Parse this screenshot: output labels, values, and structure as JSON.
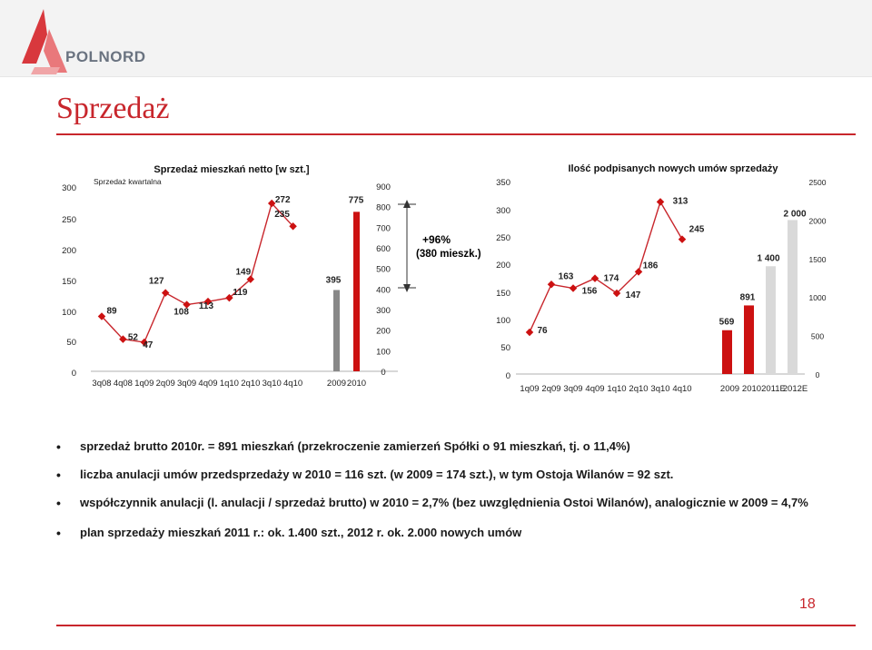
{
  "header": {
    "logo_text": "POLNORD",
    "title": "Sprzedaż"
  },
  "colors": {
    "accent_red": "#c8262c",
    "line_red": "#c8262c",
    "bar_red": "#cc1111",
    "bar_gray": "#888888",
    "bar_light": "#d9d9d9"
  },
  "annotation": {
    "growth_pct": "+96%",
    "growth_units": "(380 mieszk.)"
  },
  "chart_data": [
    {
      "type": "line",
      "title": "Sprzedaż mieszkań netto [w szt.]",
      "subtitle": "Sprzedaż kwartalna",
      "x": [
        "3q08",
        "4q08",
        "1q09",
        "2q09",
        "3q09",
        "4q09",
        "1q10",
        "2q10",
        "3q10",
        "4q10"
      ],
      "series": [
        {
          "values": [
            89,
            52,
            47,
            127,
            108,
            113,
            119,
            149,
            272,
            235
          ]
        }
      ],
      "ylim": [
        0,
        300
      ],
      "yticks": [
        0,
        50,
        100,
        150,
        200,
        250,
        300
      ],
      "grid": false
    },
    {
      "type": "bar",
      "categories": [
        "2009",
        "2010"
      ],
      "values": [
        395,
        775
      ],
      "ylim": [
        0,
        900
      ],
      "yticks": [
        0,
        100,
        200,
        300,
        400,
        500,
        600,
        700,
        800,
        900
      ]
    },
    {
      "type": "line",
      "title": "Ilość podpisanych nowych umów sprzedaży",
      "x": [
        "1q09",
        "2q09",
        "3q09",
        "4q09",
        "1q10",
        "2q10",
        "3q10",
        "4q10"
      ],
      "series": [
        {
          "values": [
            76,
            163,
            156,
            174,
            147,
            186,
            313,
            245
          ]
        }
      ],
      "ylim": [
        0,
        350
      ],
      "yticks": [
        0,
        50,
        100,
        150,
        200,
        250,
        300,
        350
      ],
      "grid": false
    },
    {
      "type": "bar",
      "categories": [
        "2009",
        "2010",
        "2011E",
        "2012E"
      ],
      "values": [
        569,
        891,
        1400,
        2000
      ],
      "value_labels": [
        "569",
        "891",
        "1 400",
        "2 000"
      ],
      "ylim": [
        0,
        2500
      ],
      "yticks": [
        0,
        500,
        1000,
        1500,
        2000,
        2500
      ]
    }
  ],
  "bullets": [
    "sprzedaż brutto 2010r. = 891 mieszkań (przekroczenie zamierzeń Spółki o 91 mieszkań, tj. o 11,4%)",
    "liczba anulacji umów przedsprzedaży w 2010 = 116 szt. (w 2009 = 174 szt.), w tym Ostoja Wilanów = 92 szt.",
    "współczynnik anulacji (l. anulacji / sprzedaż brutto) w 2010 = 2,7% (bez uwzględnienia Ostoi Wilanów), analogicznie w 2009 = 4,7%",
    "plan sprzedaży mieszkań 2011 r.: ok. 1.400 szt., 2012 r. ok. 2.000 nowych umów"
  ],
  "page_number": "18"
}
